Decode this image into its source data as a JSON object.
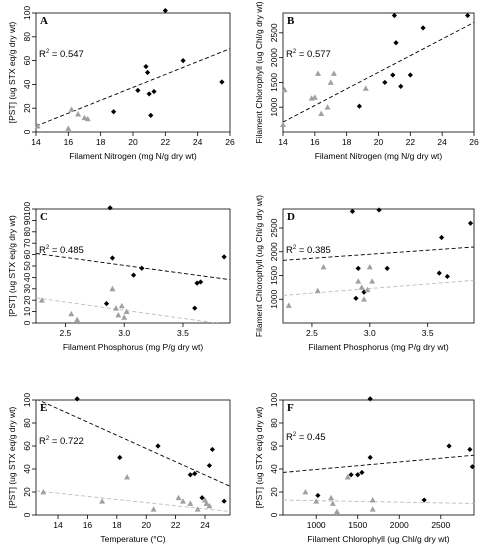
{
  "colors": {
    "black_series": "#000000",
    "gray_series": "#a0a0a0",
    "black_trend": "#000000",
    "gray_trend": "#bdbdbd"
  },
  "chart_data": [
    {
      "type": "scatter",
      "letter": "A",
      "xlabel": "Filament Nitrogen (mg N/g dry wt)",
      "ylabel": "[PST] (ug STX eq/g dry wt)",
      "xlim": [
        14,
        26
      ],
      "ylim": [
        0,
        100
      ],
      "xticks": [
        14,
        16,
        18,
        20,
        22,
        24,
        26
      ],
      "yticks": [
        0,
        20,
        40,
        60,
        80,
        100
      ],
      "r2_prefix": "R",
      "r2_sup": "2",
      "r2_value": " = 0.547",
      "series": [
        {
          "marker": "diamond",
          "color": "#000000",
          "x": [
            18.8,
            20.3,
            20.8,
            20.9,
            21.0,
            21.3,
            22.0,
            23.1,
            25.5,
            21.1
          ],
          "y": [
            17,
            35,
            55,
            50,
            32,
            34,
            102,
            60,
            42,
            14
          ]
        },
        {
          "marker": "triangle",
          "color": "#a0a0a0",
          "x": [
            14.1,
            16.0,
            16.2,
            16.6,
            17.0,
            17.2
          ],
          "y": [
            5,
            3,
            19,
            15,
            12,
            11
          ]
        }
      ],
      "trends": [
        {
          "color": "#000000",
          "x": [
            14,
            26
          ],
          "y": [
            5,
            70
          ]
        }
      ]
    },
    {
      "type": "scatter",
      "letter": "B",
      "xlabel": "Filament Nitrogen (mg N/g dry wt)",
      "ylabel": "Filament Chlorophyll (ug Chl/g dry wt)",
      "xlim": [
        14,
        26
      ],
      "ylim": [
        500,
        2900
      ],
      "xticks": [
        14,
        16,
        18,
        20,
        22,
        24,
        26
      ],
      "yticks": [
        1000,
        1500,
        2000,
        2500
      ],
      "r2_prefix": "R",
      "r2_sup": "2",
      "r2_value": " = 0.577",
      "series": [
        {
          "marker": "diamond",
          "color": "#000000",
          "x": [
            18.8,
            20.4,
            20.9,
            21.0,
            21.1,
            21.4,
            22.0,
            22.8,
            25.6
          ],
          "y": [
            1020,
            1500,
            1650,
            2850,
            2300,
            1420,
            1650,
            2600,
            2850
          ]
        },
        {
          "marker": "triangle",
          "color": "#a0a0a0",
          "x": [
            14.0,
            14.1,
            15.8,
            16.2,
            16.4,
            16.8,
            17.2,
            19.2,
            16.0,
            17.0
          ],
          "y": [
            650,
            1350,
            1180,
            1680,
            870,
            1000,
            1680,
            1380,
            1200,
            1500
          ]
        }
      ],
      "trends": [
        {
          "color": "#000000",
          "x": [
            14,
            26
          ],
          "y": [
            700,
            2710
          ]
        }
      ]
    },
    {
      "type": "scatter",
      "letter": "C",
      "xlabel": "Filament Phosphorus (mg P/g dry wt)",
      "ylabel": "[PST] (ug STX eq/g dry wt)",
      "xlim": [
        2.25,
        3.9
      ],
      "ylim": [
        0,
        100
      ],
      "xticks": [
        2.5,
        3.0,
        3.5
      ],
      "ytickvals": [
        0,
        10,
        20,
        30,
        40,
        50,
        60,
        70,
        80,
        90,
        100
      ],
      "yticks": [
        0,
        10,
        20,
        30,
        40,
        50,
        60,
        70,
        80,
        90,
        100
      ],
      "r2_prefix": "R",
      "r2_sup": "2",
      "r2_value": " = 0.485",
      "series": [
        {
          "marker": "diamond",
          "color": "#000000",
          "x": [
            2.85,
            2.88,
            3.08,
            3.15,
            3.6,
            3.62,
            3.65,
            3.85,
            2.9
          ],
          "y": [
            17,
            101,
            42,
            48,
            13,
            35,
            36,
            58,
            57
          ]
        },
        {
          "marker": "triangle",
          "color": "#a0a0a0",
          "x": [
            2.3,
            2.55,
            2.6,
            2.9,
            2.93,
            2.95,
            2.98,
            3.0,
            3.02
          ],
          "y": [
            20,
            8,
            3,
            30,
            13,
            7,
            15,
            5,
            10
          ]
        }
      ],
      "trends": [
        {
          "color": "#000000",
          "x": [
            2.25,
            3.9
          ],
          "y": [
            61,
            38
          ]
        },
        {
          "color": "#bdbdbd",
          "x": [
            2.25,
            3.85
          ],
          "y": [
            22,
            -1
          ]
        }
      ]
    },
    {
      "type": "scatter",
      "letter": "D",
      "xlabel": "Filament Phosphorus (mg P/g dry wt)",
      "ylabel": "Filament Chlorophyll (ug Chl/g dry wt)",
      "xlim": [
        2.25,
        3.9
      ],
      "ylim": [
        500,
        2900
      ],
      "xticks": [
        2.5,
        3.0,
        3.5
      ],
      "yticks": [
        1000,
        1500,
        2000,
        2500
      ],
      "r2_prefix": "R",
      "r2_sup": "2",
      "r2_value": " = 0.385",
      "series": [
        {
          "marker": "diamond",
          "color": "#000000",
          "x": [
            2.85,
            2.88,
            2.9,
            2.95,
            3.08,
            3.15,
            3.6,
            3.62,
            3.67,
            3.87
          ],
          "y": [
            2850,
            1020,
            1650,
            1150,
            2880,
            1650,
            1550,
            2300,
            1480,
            2600
          ]
        },
        {
          "marker": "triangle",
          "color": "#a0a0a0",
          "x": [
            2.3,
            2.55,
            2.6,
            2.9,
            2.93,
            2.95,
            2.98,
            3.0,
            3.02
          ],
          "y": [
            870,
            1180,
            1680,
            1380,
            1250,
            1000,
            1200,
            1680,
            1380
          ]
        }
      ],
      "trends": [
        {
          "color": "#000000",
          "x": [
            2.25,
            3.9
          ],
          "y": [
            1820,
            2100
          ]
        },
        {
          "color": "#bdbdbd",
          "x": [
            2.25,
            3.9
          ],
          "y": [
            1080,
            1400
          ]
        }
      ]
    },
    {
      "type": "scatter",
      "letter": "E",
      "xlabel": "Temperature (°C)",
      "ylabel": "[PST] (ug STX eq/g dry wt)",
      "xlim": [
        12.5,
        25.7
      ],
      "ylim": [
        0,
        100
      ],
      "xticks": [
        14,
        16,
        18,
        20,
        22,
        24
      ],
      "yticks": [
        0,
        20,
        40,
        60,
        80,
        100
      ],
      "r2_prefix": "R",
      "r2_sup": "2",
      "r2_value": " = 0.722",
      "series": [
        {
          "marker": "diamond",
          "color": "#000000",
          "x": [
            15.3,
            18.2,
            20.8,
            23.0,
            23.3,
            23.8,
            24.3,
            24.5,
            25.3
          ],
          "y": [
            101,
            50,
            60,
            35,
            36,
            15,
            43,
            57,
            12
          ]
        },
        {
          "marker": "triangle",
          "color": "#a0a0a0",
          "x": [
            13.0,
            17.0,
            18.7,
            20.5,
            22.2,
            22.5,
            23.0,
            23.5,
            24.0,
            24.1,
            24.3
          ],
          "y": [
            20,
            12,
            33,
            5,
            15,
            12,
            10,
            5,
            13,
            10,
            8
          ]
        }
      ],
      "trends": [
        {
          "color": "#000000",
          "x": [
            12.5,
            25.7
          ],
          "y": [
            101,
            25
          ]
        },
        {
          "color": "#bdbdbd",
          "x": [
            12.5,
            25.7
          ],
          "y": [
            21,
            3
          ]
        }
      ]
    },
    {
      "type": "scatter",
      "letter": "F",
      "xlabel": "Filament Chlorophyll (ug Chl/g dry wt)",
      "ylabel": "[PST] (ug STX eq/g dry wt)",
      "xlim": [
        600,
        2900
      ],
      "ylim": [
        0,
        100
      ],
      "xticks": [
        1000,
        1500,
        2000,
        2500
      ],
      "yticks": [
        0,
        20,
        40,
        60,
        80,
        100
      ],
      "r2_prefix": "R",
      "r2_sup": "2",
      "r2_value": " = 0.45",
      "series": [
        {
          "marker": "diamond",
          "color": "#000000",
          "x": [
            1020,
            1420,
            1500,
            1550,
            1650,
            1650,
            2300,
            2600,
            2850,
            2880
          ],
          "y": [
            17,
            35,
            35,
            37,
            101,
            50,
            13,
            60,
            57,
            42
          ]
        },
        {
          "marker": "triangle",
          "color": "#a0a0a0",
          "x": [
            870,
            1000,
            1180,
            1200,
            1250,
            1380,
            1680,
            1680
          ],
          "y": [
            20,
            12,
            15,
            10,
            3,
            33,
            5,
            13
          ]
        }
      ],
      "trends": [
        {
          "color": "#000000",
          "x": [
            600,
            2900
          ],
          "y": [
            37,
            52
          ]
        },
        {
          "color": "#bdbdbd",
          "x": [
            600,
            2900
          ],
          "y": [
            13,
            10
          ]
        }
      ]
    }
  ]
}
